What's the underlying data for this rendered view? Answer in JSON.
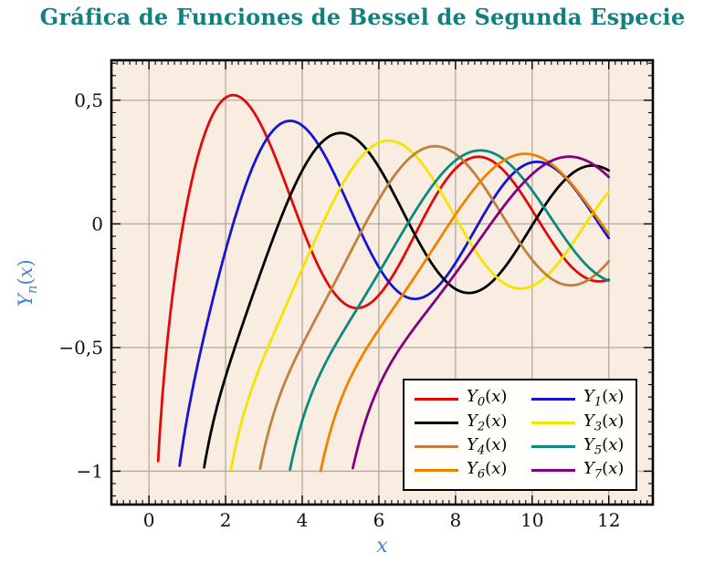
{
  "title": {
    "text": "Gráfica de Funciones de Bessel de Segunda Especie",
    "color": "#118080"
  },
  "chart_data": {
    "type": "line",
    "title": "Gráfica de Funciones de Bessel de Segunda Especie",
    "xlabel": "x",
    "ylabel": "Y_n(x)",
    "ylabel_parts": {
      "base": "Y",
      "sub": "n",
      "open": "(",
      "arg": "x",
      "close": ")"
    },
    "function_family": "Bessel functions of the second kind Y_n(x), orders n = 0..7",
    "domain": [
      0,
      12
    ],
    "clip_y_min": -1.0,
    "sampling": {
      "x_start": 0.02,
      "x_end": 12,
      "step": 0.02
    },
    "xlim": [
      -0.98,
      13.15
    ],
    "ylim": [
      -1.135,
      0.662
    ],
    "x_ticks": {
      "values": [
        0,
        2,
        4,
        6,
        8,
        10,
        12
      ],
      "labels": [
        "0",
        "2",
        "4",
        "6",
        "8",
        "10",
        "12"
      ]
    },
    "y_ticks": {
      "values": [
        0.5,
        0,
        -0.5,
        -1
      ],
      "labels": [
        "0,5",
        "0",
        "−0,5",
        "−1"
      ]
    },
    "minor_x_step": 0.166667,
    "minor_y_step": 0.05,
    "grid": true,
    "colors": {
      "plot_bg": "#f9ece0",
      "grid": "#b3a9a1",
      "frame": "#000000",
      "tick": "#000000",
      "tick_label": "#111111",
      "axis_label": "#4a82d2",
      "legend_bg": "#fffefa",
      "legend_border": "#000000"
    },
    "series": [
      {
        "name": "Y_0(x)",
        "label_parts": {
          "base": "Y",
          "sub": "0",
          "open": "(",
          "arg": "x",
          "close": ")"
        },
        "order": 0,
        "color": "#e10a0a",
        "first_max": {
          "x": 2.2,
          "y": 0.52
        }
      },
      {
        "name": "Y_1(x)",
        "label_parts": {
          "base": "Y",
          "sub": "1",
          "open": "(",
          "arg": "x",
          "close": ")"
        },
        "order": 1,
        "color": "#1414d2",
        "first_max": {
          "x": 3.68,
          "y": 0.42
        }
      },
      {
        "name": "Y_2(x)",
        "label_parts": {
          "base": "Y",
          "sub": "2",
          "open": "(",
          "arg": "x",
          "close": ")"
        },
        "order": 2,
        "color": "#000000",
        "first_max": {
          "x": 5.0,
          "y": 0.37
        }
      },
      {
        "name": "Y_3(x)",
        "label_parts": {
          "base": "Y",
          "sub": "3",
          "open": "(",
          "arg": "x",
          "close": ")"
        },
        "order": 3,
        "color": "#f5e400",
        "first_max": {
          "x": 6.3,
          "y": 0.33
        }
      },
      {
        "name": "Y_4(x)",
        "label_parts": {
          "base": "Y",
          "sub": "4",
          "open": "(",
          "arg": "x",
          "close": ")"
        },
        "order": 4,
        "color": "#bf8040",
        "first_max": {
          "x": 7.55,
          "y": 0.31
        }
      },
      {
        "name": "Y_5(x)",
        "label_parts": {
          "base": "Y",
          "sub": "5",
          "open": "(",
          "arg": "x",
          "close": ")"
        },
        "order": 5,
        "color": "#0a8a7f",
        "first_max": {
          "x": 8.8,
          "y": 0.29
        }
      },
      {
        "name": "Y_6(x)",
        "label_parts": {
          "base": "Y",
          "sub": "6",
          "open": "(",
          "arg": "x",
          "close": ")"
        },
        "order": 6,
        "color": "#f08200",
        "first_max": {
          "x": 10.05,
          "y": 0.27
        }
      },
      {
        "name": "Y_7(x)",
        "label_parts": {
          "base": "Y",
          "sub": "7",
          "open": "(",
          "arg": "x",
          "close": ")"
        },
        "order": 7,
        "color": "#800080",
        "first_max": {
          "x": 11.25,
          "y": 0.26
        }
      }
    ],
    "legend": {
      "columns": 2,
      "order": "row-major",
      "position": "inside bottom-right"
    }
  }
}
